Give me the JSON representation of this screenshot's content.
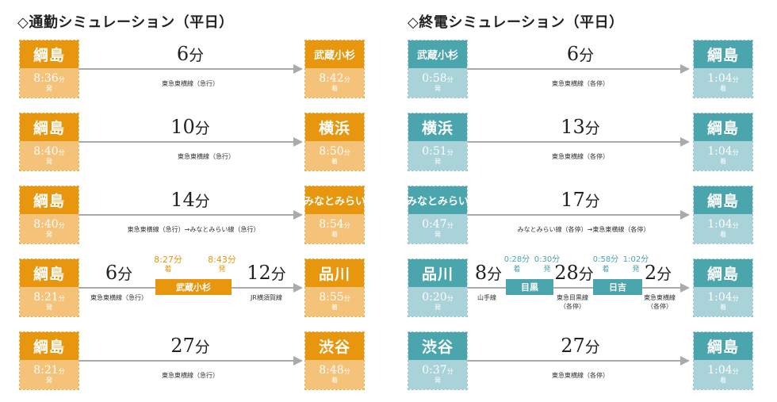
{
  "left_title": "◇通勤シミュレーション（平日）",
  "right_title": "◇終電シミュレーション（平日）",
  "commute": [
    {
      "from": "綱島",
      "dep": "8:36",
      "dep_unit": "分",
      "dep_suffix": "発",
      "duration": "6",
      "duration_unit": "分",
      "line": "東急東横線（急行）",
      "to": "武蔵小杉",
      "arr": "8:42",
      "arr_unit": "分",
      "arr_suffix": "着"
    },
    {
      "from": "綱島",
      "dep": "8:40",
      "dep_unit": "分",
      "dep_suffix": "発",
      "duration": "10",
      "duration_unit": "分",
      "line": "東急東横線（急行）",
      "to": "横浜",
      "arr": "8:50",
      "arr_unit": "分",
      "arr_suffix": "着"
    },
    {
      "from": "綱島",
      "dep": "8:40",
      "dep_unit": "分",
      "dep_suffix": "発",
      "duration": "14",
      "duration_unit": "分",
      "line": "東急東横線（急行）→みなとみらい線（急行）",
      "to": "みなとみらい",
      "arr": "8:54",
      "arr_unit": "分",
      "arr_suffix": "着"
    },
    {
      "from": "綱島",
      "dep": "8:21",
      "dep_unit": "分",
      "dep_suffix": "発",
      "seg1_duration": "6",
      "seg1_unit": "分",
      "seg1_line": "東急東横線（急行）",
      "transfer": "武蔵小杉",
      "transfer_arr": "8:27分",
      "transfer_arr_suffix": "着",
      "transfer_dep": "8:43分",
      "transfer_dep_suffix": "発",
      "seg2_duration": "12",
      "seg2_unit": "分",
      "seg2_line": "JR横須賀線",
      "to": "品川",
      "arr": "8:55",
      "arr_unit": "分",
      "arr_suffix": "着"
    },
    {
      "from": "綱島",
      "dep": "8:21",
      "dep_unit": "分",
      "dep_suffix": "発",
      "duration": "27",
      "duration_unit": "分",
      "line": "東急東横線（急行）",
      "to": "渋谷",
      "arr": "8:48",
      "arr_unit": "分",
      "arr_suffix": "着"
    }
  ],
  "last_train": [
    {
      "from": "武蔵小杉",
      "dep": "0:58",
      "dep_unit": "分",
      "dep_suffix": "発",
      "duration": "6",
      "duration_unit": "分",
      "line": "東急東横線（各停）",
      "to": "綱島",
      "arr": "1:04",
      "arr_unit": "分",
      "arr_suffix": "着"
    },
    {
      "from": "横浜",
      "dep": "0:51",
      "dep_unit": "分",
      "dep_suffix": "発",
      "duration": "13",
      "duration_unit": "分",
      "line": "東急東横線（各停）",
      "to": "綱島",
      "arr": "1:04",
      "arr_unit": "分",
      "arr_suffix": "着"
    },
    {
      "from": "みなとみらい",
      "dep": "0:47",
      "dep_unit": "分",
      "dep_suffix": "発",
      "duration": "17",
      "duration_unit": "分",
      "line": "みなとみらい線（各停）→東急東横線（各停）",
      "to": "綱島",
      "arr": "1:04",
      "arr_unit": "分",
      "arr_suffix": "着"
    },
    {
      "from": "品川",
      "dep": "0:20",
      "dep_unit": "分",
      "dep_suffix": "発",
      "seg1_duration": "8",
      "seg1_unit": "分",
      "seg1_line": "山手線",
      "transfer1": "目黒",
      "t1_arr": "0:28分",
      "t1_arr_suffix": "着",
      "t1_dep": "0:30分",
      "t1_dep_suffix": "発",
      "seg2_duration": "28",
      "seg2_unit": "分",
      "seg2_line": "東急目黒線",
      "seg2_note": "（各停）",
      "transfer2": "日吉",
      "t2_arr": "0:58分",
      "t2_arr_suffix": "着",
      "t2_dep": "1:02分",
      "t2_dep_suffix": "発",
      "seg3_duration": "2",
      "seg3_unit": "分",
      "seg3_line": "東急東横線",
      "seg3_note": "（各停）",
      "to": "綱島",
      "arr": "1:04",
      "arr_unit": "分",
      "arr_suffix": "着"
    },
    {
      "from": "渋谷",
      "dep": "0:37",
      "dep_unit": "分",
      "dep_suffix": "発",
      "duration": "27",
      "duration_unit": "分",
      "line": "東急東横線（各停）",
      "to": "綱島",
      "arr": "1:04",
      "arr_unit": "分",
      "arr_suffix": "着"
    }
  ],
  "colors": {
    "orange": "#e8960e",
    "orange_light": "#f5c27a",
    "teal": "#4aa5ad",
    "teal_light": "#a9d3d8",
    "arrow": "#aaaaaa"
  }
}
